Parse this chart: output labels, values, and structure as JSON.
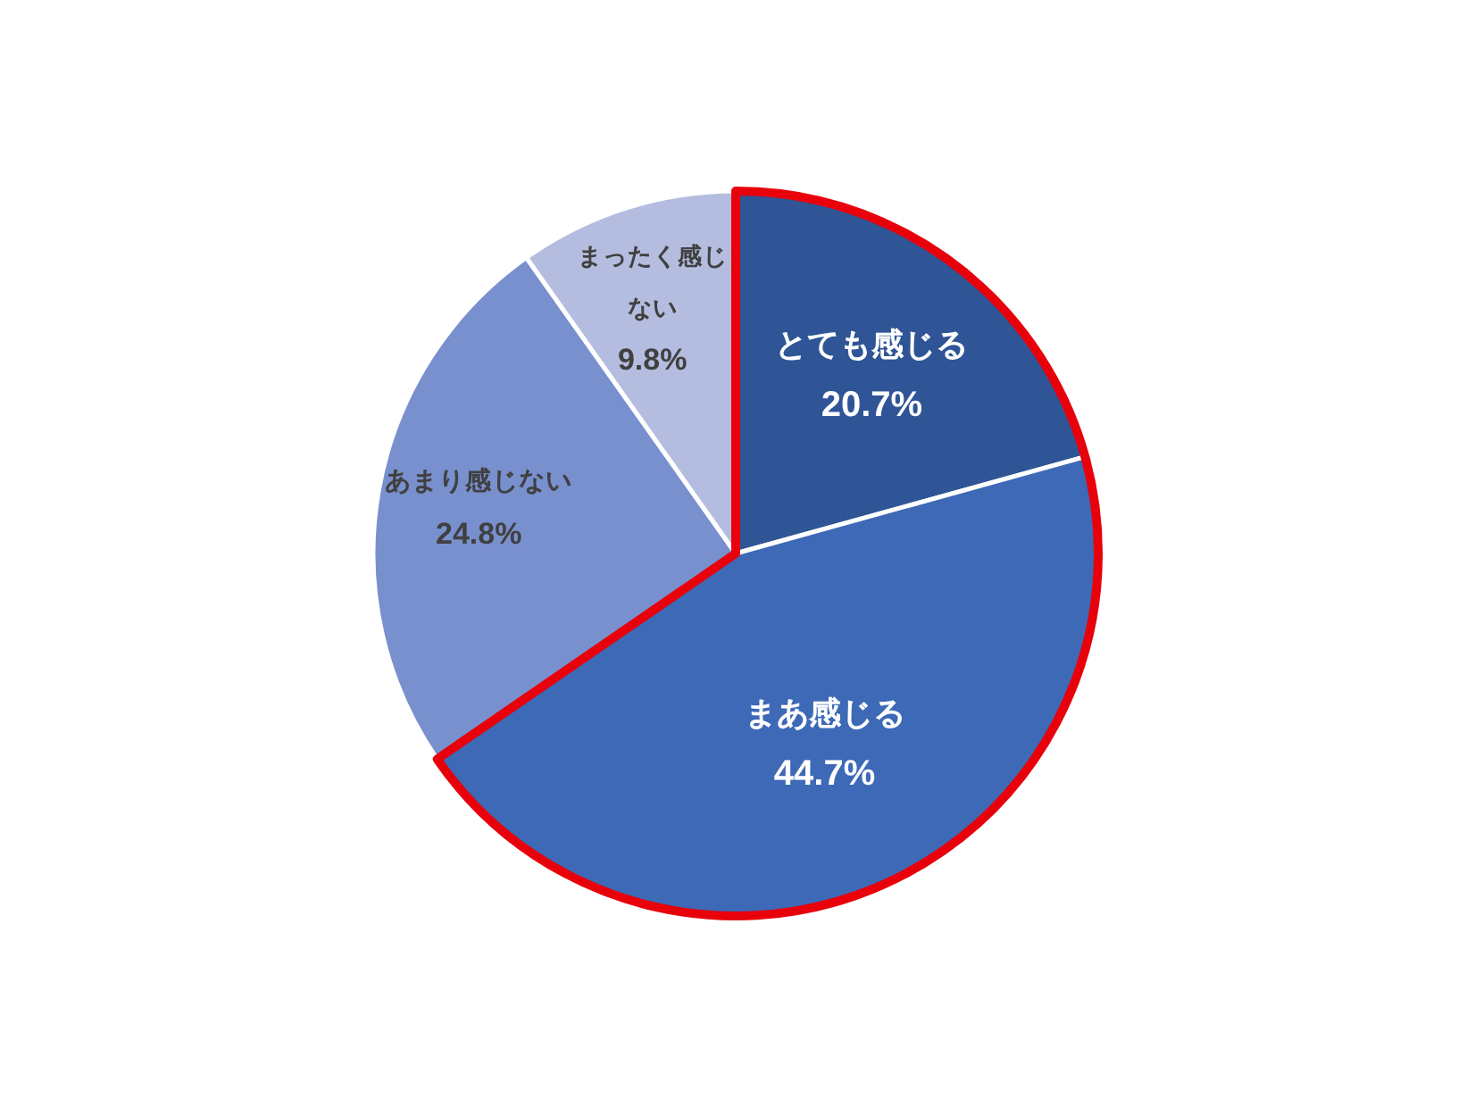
{
  "chart_data": {
    "type": "pie",
    "categories": [
      "とても感じる",
      "まあ感じる",
      "あまり感じない",
      "まったく感じない"
    ],
    "values": [
      20.7,
      44.7,
      24.8,
      9.8
    ],
    "value_labels": [
      "20.7%",
      "44.7%",
      "24.8%",
      "9.8%"
    ],
    "colors": [
      "#2f5597",
      "#3d69b7",
      "#7990cf",
      "#b4bde0"
    ]
  }
}
